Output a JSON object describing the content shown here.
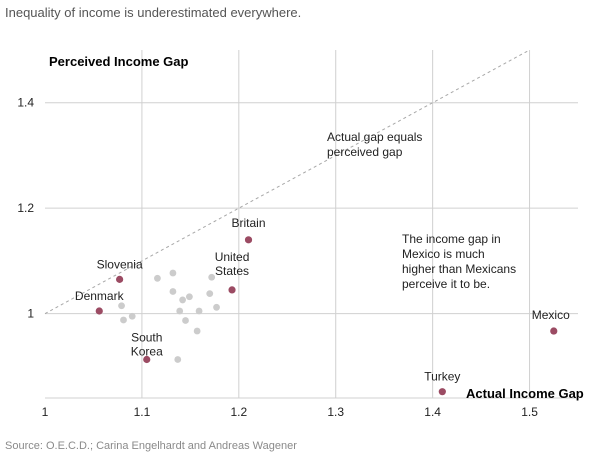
{
  "subtitle": "Inequality of income is underestimated everywhere.",
  "source": "Source: O.E.C.D.; Carina Engelhardt and Andreas Wagener",
  "colors": {
    "highlight": "#9b4b63",
    "other": "#cccccc",
    "grid": "#d0d0d0",
    "reference_line": "#a8a8a8"
  },
  "chart_data": {
    "type": "scatter",
    "title": "Inequality of income is underestimated everywhere.",
    "xlabel": "Actual Income Gap",
    "ylabel": "Perceived Income Gap",
    "xlim": [
      1.0,
      1.55
    ],
    "ylim": [
      0.84,
      1.5
    ],
    "xticks": [
      "1",
      "1.1",
      "1.2",
      "1.3",
      "1.4",
      "1.5"
    ],
    "xtick_values": [
      1.0,
      1.1,
      1.2,
      1.3,
      1.4,
      1.5
    ],
    "yticks": [
      "1",
      "1.2",
      "1.4"
    ],
    "ytick_values": [
      1.0,
      1.2,
      1.4
    ],
    "grid": true,
    "reference_line": {
      "label": [
        "Actual gap equals",
        "perceived gap"
      ],
      "from": [
        1.0,
        1.0
      ],
      "to": [
        1.5,
        1.5
      ]
    },
    "annotation": [
      "The income gap in",
      "Mexico is much",
      "higher than Mexicans",
      "perceive it to be."
    ],
    "labeled_points": [
      {
        "label": [
          "Britain"
        ],
        "x": 1.21,
        "y": 1.14
      },
      {
        "label": [
          "United",
          "States"
        ],
        "x": 1.193,
        "y": 1.045
      },
      {
        "label": [
          "Slovenia"
        ],
        "x": 1.077,
        "y": 1.065
      },
      {
        "label": [
          "Denmark"
        ],
        "x": 1.056,
        "y": 1.005
      },
      {
        "label": [
          "South",
          "Korea"
        ],
        "x": 1.105,
        "y": 0.913
      },
      {
        "label": [
          "Mexico"
        ],
        "x": 1.525,
        "y": 0.967
      },
      {
        "label": [
          "Turkey"
        ],
        "x": 1.41,
        "y": 0.852
      }
    ],
    "other_points": [
      {
        "x": 1.116,
        "y": 1.067
      },
      {
        "x": 1.132,
        "y": 1.077
      },
      {
        "x": 1.132,
        "y": 1.042
      },
      {
        "x": 1.172,
        "y": 1.069
      },
      {
        "x": 1.142,
        "y": 1.026
      },
      {
        "x": 1.149,
        "y": 1.032
      },
      {
        "x": 1.17,
        "y": 1.038
      },
      {
        "x": 1.159,
        "y": 1.005
      },
      {
        "x": 1.177,
        "y": 1.012
      },
      {
        "x": 1.139,
        "y": 1.005
      },
      {
        "x": 1.079,
        "y": 1.015
      },
      {
        "x": 1.09,
        "y": 0.995
      },
      {
        "x": 1.081,
        "y": 0.988
      },
      {
        "x": 1.145,
        "y": 0.987
      },
      {
        "x": 1.157,
        "y": 0.967
      },
      {
        "x": 1.137,
        "y": 0.913
      }
    ]
  }
}
